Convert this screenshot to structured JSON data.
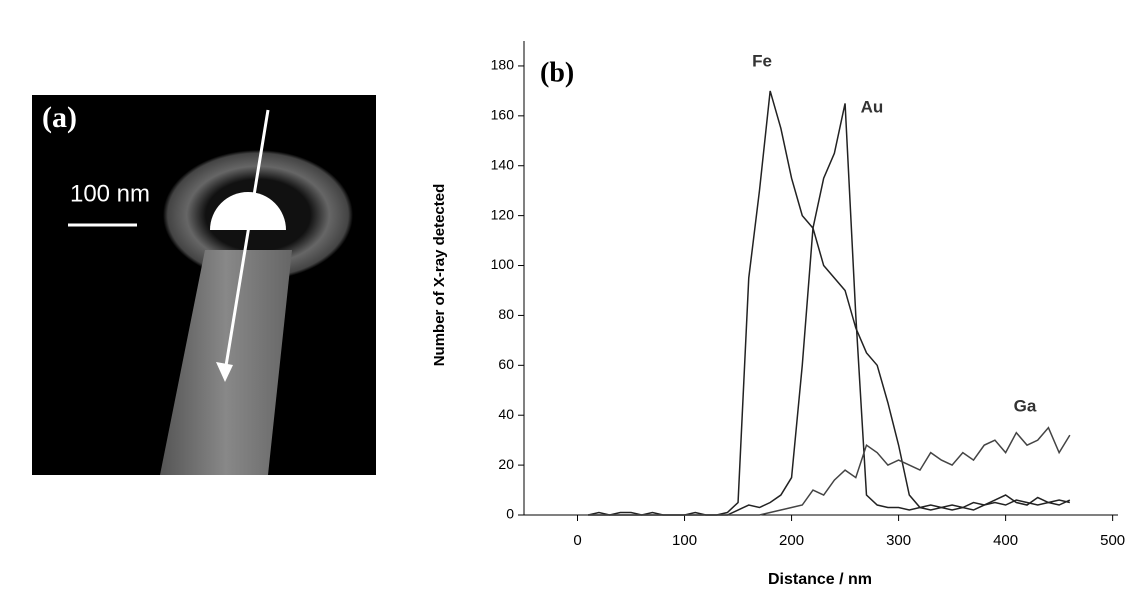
{
  "image_panel": {
    "label": "(a)",
    "scale_bar": "100 nm"
  },
  "chart_data": {
    "type": "line",
    "panel_label": "(b)",
    "x_label": "Distance / nm",
    "y_label": "Number of X-ray detected",
    "x": [
      10,
      20,
      30,
      40,
      50,
      60,
      70,
      80,
      90,
      100,
      110,
      120,
      130,
      140,
      150,
      160,
      170,
      180,
      190,
      200,
      210,
      220,
      230,
      240,
      250,
      260,
      270,
      280,
      290,
      300,
      310,
      320,
      330,
      340,
      350,
      360,
      370,
      380,
      390,
      400,
      410,
      420,
      430,
      440,
      450,
      460
    ],
    "series": [
      {
        "name": "Fe",
        "color": "#222222",
        "values": [
          0,
          1,
          0,
          1,
          1,
          0,
          1,
          0,
          0,
          0,
          1,
          0,
          0,
          1,
          5,
          95,
          130,
          170,
          155,
          135,
          120,
          115,
          100,
          95,
          90,
          75,
          65,
          60,
          45,
          28,
          8,
          3,
          2,
          3,
          2,
          3,
          2,
          4,
          5,
          4,
          6,
          5,
          4,
          5,
          6,
          5
        ]
      },
      {
        "name": "Au",
        "color": "#222222",
        "values": [
          0,
          0,
          0,
          0,
          0,
          0,
          0,
          0,
          0,
          0,
          0,
          0,
          0,
          0,
          2,
          4,
          3,
          5,
          8,
          15,
          60,
          115,
          135,
          145,
          165,
          80,
          8,
          4,
          3,
          3,
          2,
          3,
          4,
          3,
          4,
          3,
          5,
          4,
          6,
          8,
          5,
          4,
          7,
          5,
          4,
          6
        ]
      },
      {
        "name": "Ga",
        "color": "#444444",
        "values": [
          0,
          0,
          0,
          0,
          0,
          0,
          0,
          0,
          0,
          0,
          0,
          0,
          0,
          0,
          0,
          0,
          0,
          1,
          2,
          3,
          4,
          10,
          8,
          14,
          18,
          15,
          28,
          25,
          20,
          22,
          20,
          18,
          25,
          22,
          20,
          25,
          22,
          28,
          30,
          25,
          33,
          28,
          30,
          35,
          25,
          32
        ]
      }
    ],
    "xlim": [
      -50,
      505
    ],
    "ylim": [
      0,
      190
    ],
    "xticks": [
      0,
      100,
      200,
      300,
      400,
      500
    ],
    "yticks": [
      0,
      20,
      40,
      60,
      80,
      100,
      120,
      140,
      160,
      180
    ]
  }
}
